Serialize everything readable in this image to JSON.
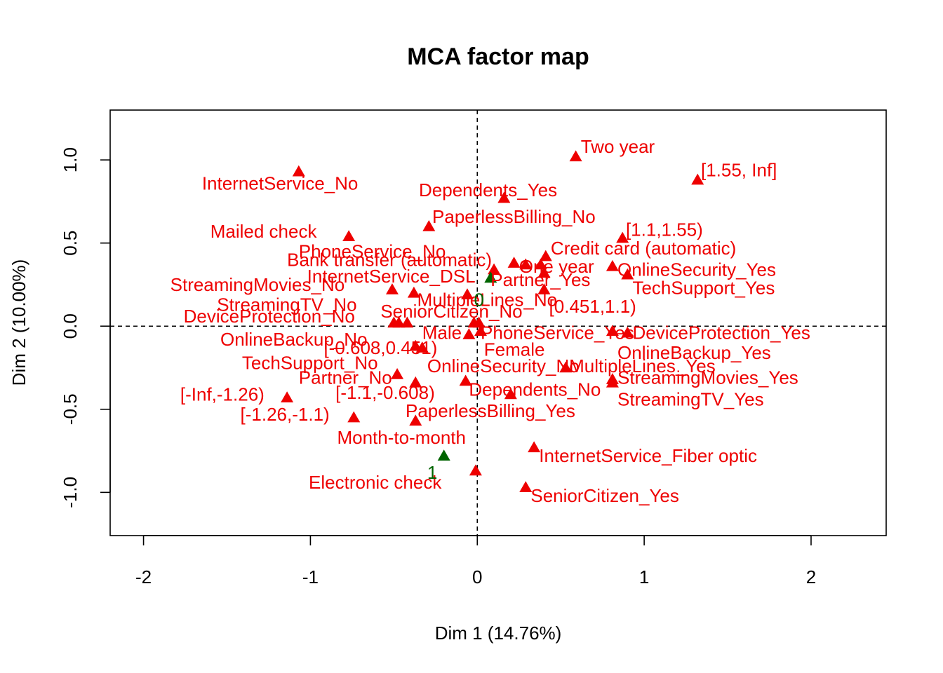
{
  "chart_data": {
    "type": "scatter",
    "title": "MCA factor map",
    "xlabel": "Dim 1 (14.76%)",
    "ylabel": "Dim 2 (10.00%)",
    "xlim": [
      -2.2,
      2.45
    ],
    "ylim": [
      -1.26,
      1.3
    ],
    "xticks": [
      -2,
      -1,
      0,
      1,
      2
    ],
    "yticks": [
      -1.0,
      -0.5,
      0.0,
      0.5,
      1.0
    ],
    "xtick_labels": [
      "-2",
      "-1",
      "0",
      "1",
      "2"
    ],
    "ytick_labels": [
      "-1.0",
      "-0.5",
      "0.0",
      "0.5",
      "1.0"
    ],
    "reference_lines": {
      "x": 0,
      "y": 0,
      "style": "dashed"
    },
    "grid": false,
    "colors": {
      "categories": "#ee0000",
      "supplementary": "#006400"
    },
    "series": [
      {
        "group": "categories",
        "points": [
          {
            "label": "Two year",
            "x": 0.59,
            "y": 1.02,
            "lx": 0.62,
            "ly": 1.08
          },
          {
            "label": "[1.55, Inf]",
            "x": 1.32,
            "y": 0.88,
            "lx": 1.34,
            "ly": 0.94
          },
          {
            "label": "InternetService_No",
            "x": -1.07,
            "y": 0.93,
            "lx": -1.65,
            "ly": 0.86
          },
          {
            "label": "Dependents_Yes",
            "x": 0.16,
            "y": 0.77,
            "lx": -0.35,
            "ly": 0.82
          },
          {
            "label": "PaperlessBilling_No",
            "x": -0.29,
            "y": 0.6,
            "lx": -0.27,
            "ly": 0.66
          },
          {
            "label": "Mailed check",
            "x": -0.77,
            "y": 0.54,
            "lx": -1.6,
            "ly": 0.57
          },
          {
            "label": "[1.1,1.55)",
            "x": 0.87,
            "y": 0.53,
            "lx": 0.89,
            "ly": 0.58
          },
          {
            "label": "Credit card (automatic)",
            "x": 0.41,
            "y": 0.42,
            "lx": 0.44,
            "ly": 0.47
          },
          {
            "label": "Bank transfer (automatic)",
            "x": 0.22,
            "y": 0.38,
            "lx": -1.14,
            "ly": 0.4
          },
          {
            "label": "PhoneService_No",
            "x": 0.29,
            "y": 0.37,
            "lx": -1.07,
            "ly": 0.45
          },
          {
            "label": "One year",
            "x": 0.38,
            "y": 0.37,
            "lx": 0.25,
            "ly": 0.36
          },
          {
            "label": "OnlineSecurity_Yes",
            "x": 0.81,
            "y": 0.36,
            "lx": 0.84,
            "ly": 0.34
          },
          {
            "label": "InternetService_DSL",
            "x": 0.1,
            "y": 0.34,
            "lx": -1.02,
            "ly": 0.3
          },
          {
            "label": "Partner_Yes",
            "x": 0.4,
            "y": 0.32,
            "lx": 0.08,
            "ly": 0.28
          },
          {
            "label": "TechSupport_Yes",
            "x": 0.9,
            "y": 0.31,
            "lx": 0.93,
            "ly": 0.23
          },
          {
            "label": "StreamingMovies_No",
            "x": -0.51,
            "y": 0.22,
            "lx": -1.84,
            "ly": 0.25
          },
          {
            "label": "MultipleLines_No",
            "x": -0.38,
            "y": 0.2,
            "lx": -0.36,
            "ly": 0.16
          },
          {
            "label": "[0.451,1.1)",
            "x": 0.4,
            "y": 0.22,
            "lx": 0.43,
            "ly": 0.12
          },
          {
            "label": "SeniorCitizen_No",
            "x": -0.06,
            "y": 0.19,
            "lx": -0.58,
            "ly": 0.09
          },
          {
            "label": "StreamingTV_No",
            "x": -0.47,
            "y": 0.02,
            "lx": -1.56,
            "ly": 0.13
          },
          {
            "label": "DeviceProtection_No",
            "x": -0.42,
            "y": 0.02,
            "lx": -1.76,
            "ly": 0.06
          },
          {
            "label": "Male",
            "x": -0.02,
            "y": 0.02,
            "lx": -0.33,
            "ly": -0.04
          },
          {
            "label": "PhoneService_Yes",
            "x": 0.01,
            "y": 0.02,
            "lx": 0.02,
            "ly": -0.04
          },
          {
            "label": "DeviceProtection_Yes",
            "x": 0.81,
            "y": -0.03,
            "lx": 0.93,
            "ly": -0.04
          },
          {
            "label": "OnlineBackup_No",
            "x": -0.5,
            "y": 0.02,
            "lx": -1.54,
            "ly": -0.08
          },
          {
            "label": "OnlineBackup_Yes",
            "x": 0.9,
            "y": -0.04,
            "lx": 0.84,
            "ly": -0.16
          },
          {
            "label": "[-0.608,0.451)",
            "x": -0.05,
            "y": -0.05,
            "lx": -0.92,
            "ly": -0.13
          },
          {
            "label": "Female",
            "x": 0.02,
            "y": -0.03,
            "lx": 0.04,
            "ly": -0.14
          },
          {
            "label": "TechSupport_No",
            "x": -0.37,
            "y": -0.12,
            "lx": -1.41,
            "ly": -0.22
          },
          {
            "label": "OnlineSecurity_No",
            "x": -0.33,
            "y": -0.13,
            "lx": -0.3,
            "ly": -0.24
          },
          {
            "label": "MultipleLines_Yes",
            "x": 0.53,
            "y": -0.25,
            "lx": 0.55,
            "ly": -0.24
          },
          {
            "label": "StreamingMovies_Yes",
            "x": 0.81,
            "y": -0.32,
            "lx": 0.84,
            "ly": -0.31
          },
          {
            "label": "Partner_No",
            "x": -0.48,
            "y": -0.29,
            "lx": -1.07,
            "ly": -0.31
          },
          {
            "label": "Dependents_No",
            "x": -0.07,
            "y": -0.33,
            "lx": -0.05,
            "ly": -0.38
          },
          {
            "label": "[-1.1,-0.608)",
            "x": -0.37,
            "y": -0.34,
            "lx": -0.85,
            "ly": -0.4
          },
          {
            "label": "StreamingTV_Yes",
            "x": 0.81,
            "y": -0.34,
            "lx": 0.84,
            "ly": -0.44
          },
          {
            "label": "[-Inf,-1.26)",
            "x": -1.14,
            "y": -0.43,
            "lx": -1.78,
            "ly": -0.41
          },
          {
            "label": "PaperlessBilling_Yes",
            "x": 0.2,
            "y": -0.41,
            "lx": -0.43,
            "ly": -0.51
          },
          {
            "label": "[-1.26,-1.1)",
            "x": -0.74,
            "y": -0.55,
            "lx": -1.42,
            "ly": -0.53
          },
          {
            "label": "Month-to-month",
            "x": -0.37,
            "y": -0.57,
            "lx": -0.84,
            "ly": -0.67
          },
          {
            "label": "InternetService_Fiber optic",
            "x": 0.34,
            "y": -0.73,
            "lx": 0.37,
            "ly": -0.78
          },
          {
            "label": "Electronic check",
            "x": -0.01,
            "y": -0.87,
            "lx": -1.01,
            "ly": -0.94
          },
          {
            "label": "SeniorCitizen_Yes",
            "x": 0.29,
            "y": -0.97,
            "lx": 0.32,
            "ly": -1.02
          }
        ]
      },
      {
        "group": "supplementary",
        "points": [
          {
            "label": "0",
            "x": 0.08,
            "y": 0.29,
            "lx": -0.02,
            "ly": 0.16
          },
          {
            "label": "1",
            "x": -0.2,
            "y": -0.78,
            "lx": -0.3,
            "ly": -0.88
          }
        ]
      }
    ]
  }
}
